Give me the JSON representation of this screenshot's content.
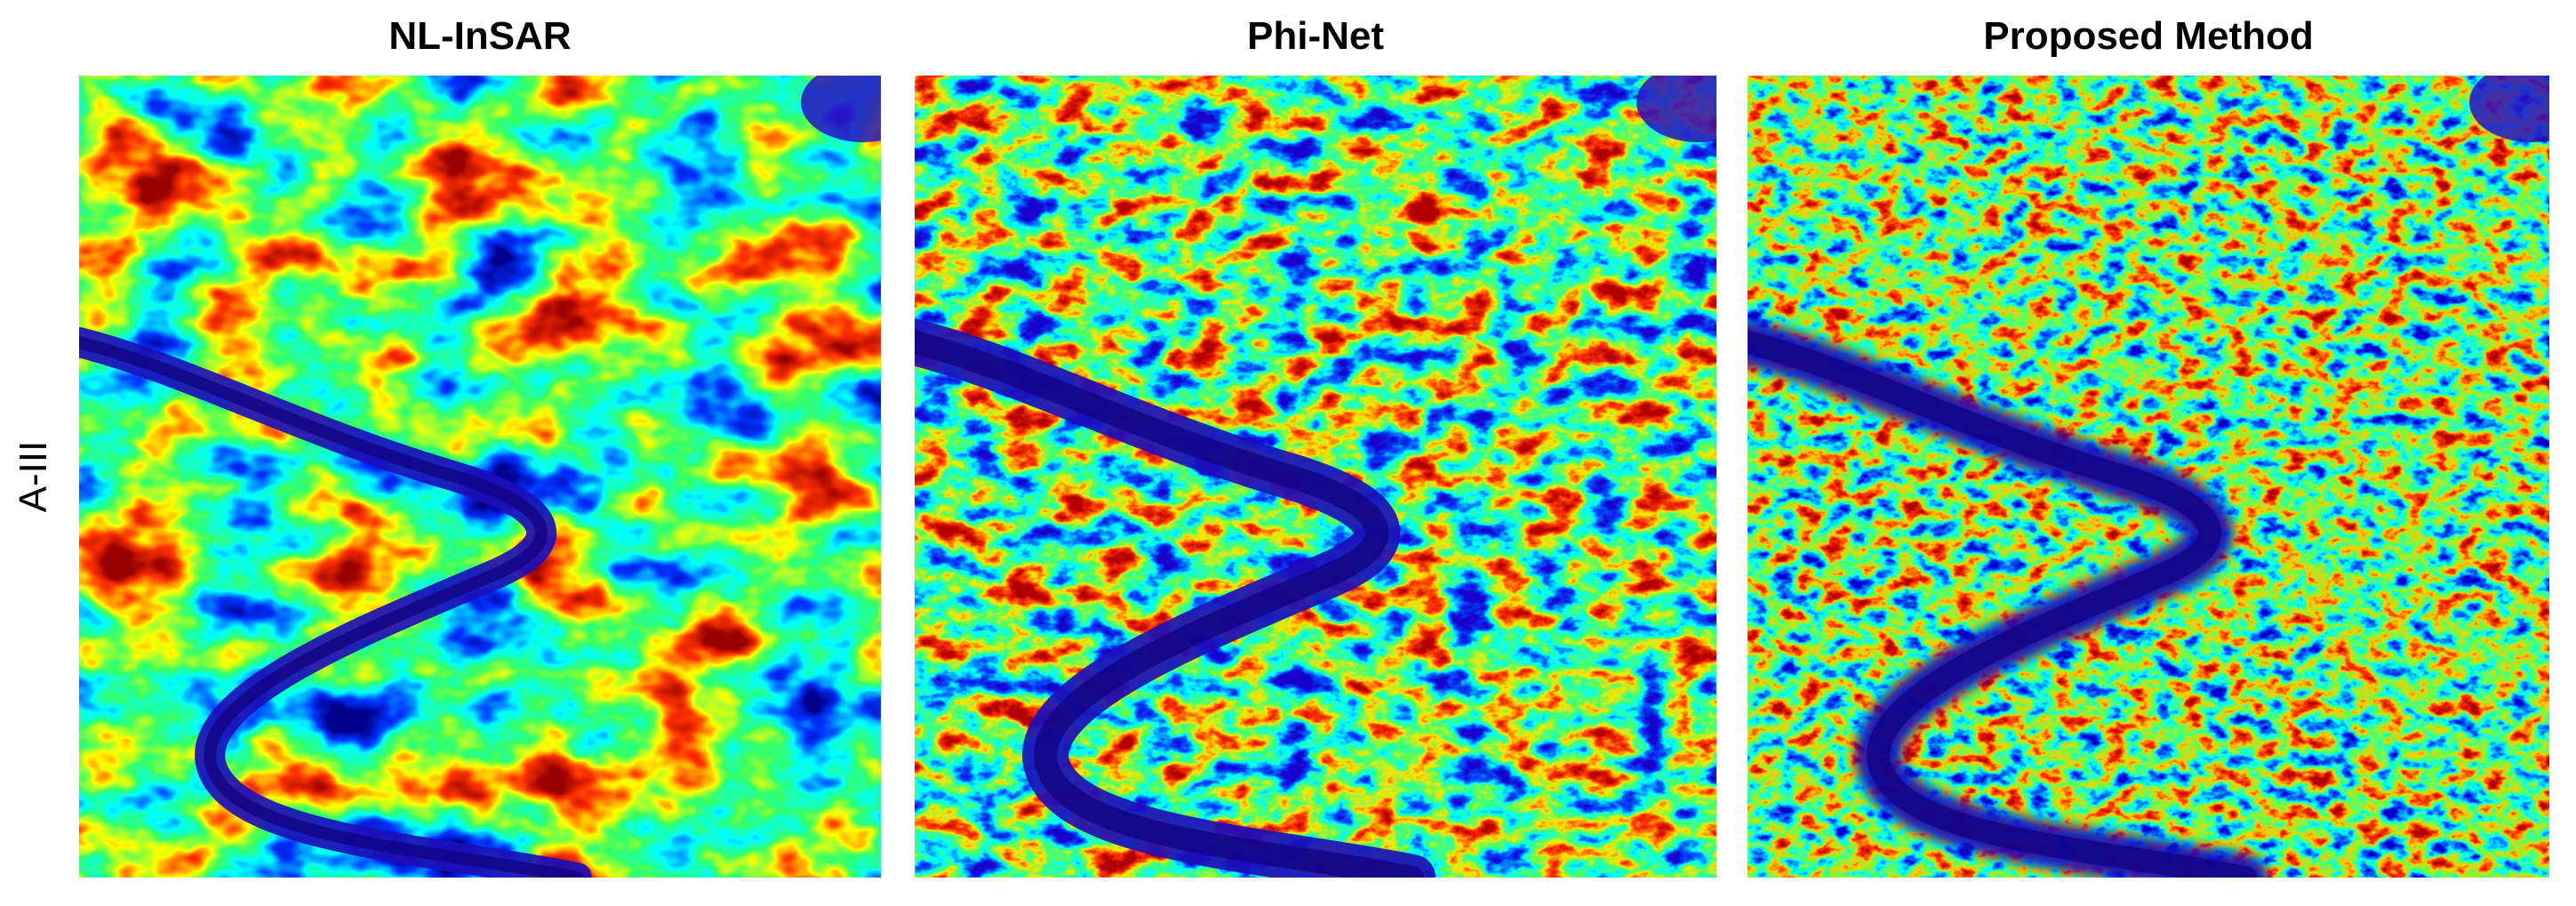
{
  "row_label": "A-III",
  "panels": [
    {
      "title": "NL-InSAR"
    },
    {
      "title": "Phi-Net"
    },
    {
      "title": "Proposed Method"
    }
  ]
}
